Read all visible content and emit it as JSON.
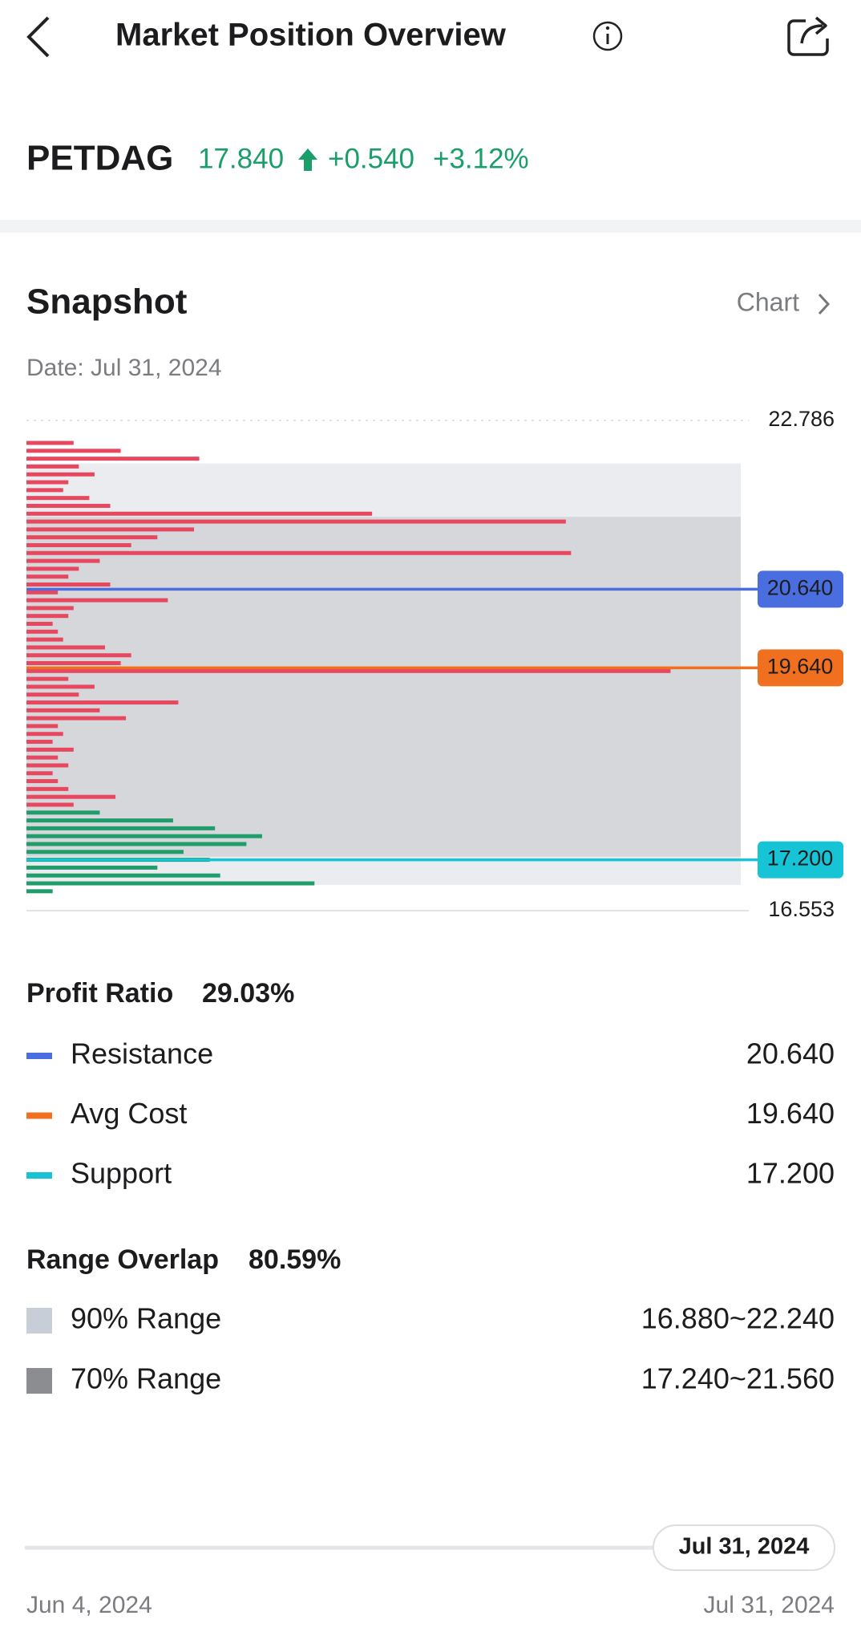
{
  "header": {
    "title": "Market Position Overview"
  },
  "stock": {
    "symbol": "PETDAG",
    "price": "17.840",
    "change": "+0.540",
    "change_pct": "+3.12%"
  },
  "snapshot": {
    "title": "Snapshot",
    "link": "Chart",
    "date": "Date: Jul 31, 2024"
  },
  "chart_data": {
    "type": "bar",
    "ylim": [
      16.553,
      22.786
    ],
    "yticks": [
      16.553,
      22.786
    ],
    "xlim": [
      0,
      682
    ],
    "current_price": {
      "value": 17.84,
      "label": "17.840"
    },
    "loss_color": "#e8485f",
    "profit_color": "#1f9e6b",
    "levels": [
      22.5,
      22.4,
      22.3,
      22.2,
      22.1,
      22.0,
      21.9,
      21.8,
      21.7,
      21.6,
      21.5,
      21.4,
      21.3,
      21.2,
      21.1,
      21.0,
      20.9,
      20.8,
      20.7,
      20.6,
      20.5,
      20.4,
      20.3,
      20.2,
      20.1,
      20.0,
      19.9,
      19.8,
      19.7,
      19.6,
      19.5,
      19.4,
      19.3,
      19.2,
      19.1,
      19.0,
      18.9,
      18.8,
      18.7,
      18.6,
      18.5,
      18.4,
      18.3,
      18.2,
      18.1,
      18.0,
      17.9,
      17.8,
      17.7,
      17.6,
      17.5,
      17.4,
      17.3,
      17.2,
      17.1,
      17.0,
      16.9,
      16.8
    ],
    "values": [
      45,
      90,
      165,
      50,
      65,
      40,
      35,
      60,
      80,
      330,
      515,
      160,
      125,
      100,
      520,
      70,
      50,
      40,
      80,
      30,
      135,
      45,
      40,
      25,
      30,
      35,
      75,
      100,
      90,
      615,
      40,
      65,
      50,
      145,
      70,
      95,
      30,
      35,
      25,
      45,
      30,
      40,
      25,
      30,
      40,
      85,
      45,
      70,
      140,
      180,
      225,
      210,
      150,
      175,
      125,
      185,
      275,
      25
    ],
    "lines": [
      {
        "name": "Resistance",
        "value": {
          "value": 20.64,
          "label": "20.640"
        },
        "color": "#4a6ee0"
      },
      {
        "name": "Avg Cost",
        "value": {
          "value": 19.64,
          "label": "19.640"
        },
        "color": "#f07020"
      },
      {
        "name": "Support",
        "value": {
          "value": 17.2,
          "label": "17.200"
        },
        "color": "#16c4d6"
      }
    ],
    "ranges": [
      {
        "name": "90% Range",
        "low": 16.88,
        "high": 22.24,
        "label": "16.880~22.240",
        "color": "#c7ced8"
      },
      {
        "name": "70% Range",
        "low": 17.24,
        "high": 21.56,
        "label": "17.240~21.560",
        "color": "#8b8d90"
      }
    ]
  },
  "profit_ratio": {
    "label": "Profit Ratio",
    "value": "29.03%"
  },
  "range_overlap": {
    "label": "Range Overlap",
    "value": "80.59%"
  },
  "slider": {
    "selected": "Jul 31, 2024",
    "start": "Jun 4, 2024",
    "end": "Jul 31, 2024"
  }
}
